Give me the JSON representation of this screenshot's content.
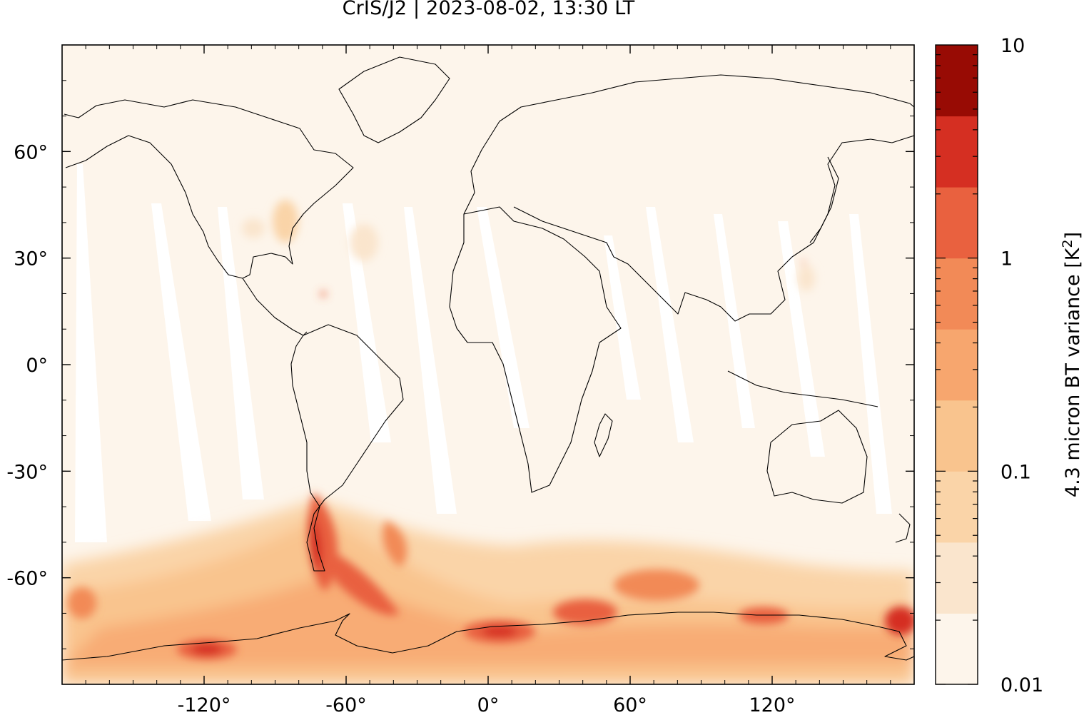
{
  "title": "CrIS/J2 | 2023-08-02, 13:30 LT",
  "map": {
    "projection": "plate-carree",
    "lon_range": [
      -180,
      180
    ],
    "lat_range": [
      -90,
      90
    ],
    "x_ticks": [
      {
        "value": -120,
        "label": "-120°"
      },
      {
        "value": -60,
        "label": "-60°"
      },
      {
        "value": 0,
        "label": "0°"
      },
      {
        "value": 60,
        "label": "60°"
      },
      {
        "value": 120,
        "label": "120°"
      }
    ],
    "y_ticks": [
      {
        "value": 60,
        "label": "60°"
      },
      {
        "value": 30,
        "label": "30°"
      },
      {
        "value": 0,
        "label": "0°"
      },
      {
        "value": -30,
        "label": "-30°"
      },
      {
        "value": -60,
        "label": "-60°"
      }
    ],
    "background_color": "#fdf5eb"
  },
  "colorbar": {
    "title": "4.3 micron BT variance [K",
    "title_sup": "2",
    "title_end": "]",
    "scale": "log",
    "range": [
      0.01,
      10
    ],
    "tick_labels": [
      {
        "value": 10,
        "label": "10"
      },
      {
        "value": 1,
        "label": "1"
      },
      {
        "value": 0.1,
        "label": "0.1"
      },
      {
        "value": 0.01,
        "label": "0.01"
      }
    ],
    "colors": [
      "#fdf5eb",
      "#fae5cd",
      "#fad4a8",
      "#f9c48e",
      "#f7a66e",
      "#f28a57",
      "#e9613f",
      "#d52f22",
      "#980b04"
    ]
  },
  "chart_data": {
    "type": "heatmap",
    "title": "CrIS/J2 | 2023-08-02, 13:30 LT",
    "xlabel": "",
    "ylabel": "",
    "colorbar_label": "4.3 micron BT variance [K2]",
    "x_range": [
      -180,
      180
    ],
    "y_range": [
      -90,
      90
    ],
    "color_scale": "log",
    "color_range": [
      0.01,
      10
    ],
    "hotspots": [
      {
        "lon": -72,
        "lat": -50,
        "value": 3.0
      },
      {
        "lon": -60,
        "lat": -62,
        "value": 2.0
      },
      {
        "lon": -118,
        "lat": -75,
        "value": 3.0
      },
      {
        "lon": 5,
        "lat": -71,
        "value": 2.0
      },
      {
        "lon": 40,
        "lat": -68,
        "value": 2.0
      },
      {
        "lon": 115,
        "lat": -67,
        "value": 2.0
      },
      {
        "lon": 175,
        "lat": -69,
        "value": 2.0
      }
    ]
  }
}
